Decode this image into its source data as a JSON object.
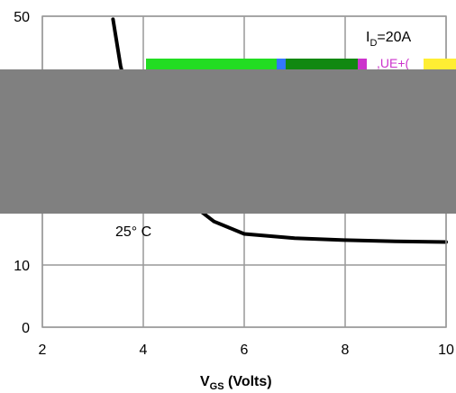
{
  "chart_data": {
    "type": "line",
    "xlabel_main": "V",
    "xlabel_sub": "GS",
    "xlabel_rest": " (Volts)",
    "ylabel": "",
    "xlim": [
      2,
      10
    ],
    "ylim": [
      0,
      50
    ],
    "x_ticks": [
      2,
      4,
      6,
      8,
      10
    ],
    "x_tick_labels": [
      "2",
      "4",
      "6",
      "8",
      "10"
    ],
    "y_ticks": [
      0,
      10,
      20,
      30,
      40,
      50
    ],
    "y_tick_labels": [
      "0",
      "10",
      "",
      "",
      "",
      "50"
    ],
    "grid": true,
    "series": [
      {
        "x": [
          3.4,
          3.55,
          3.7,
          3.85,
          4.0,
          4.3,
          4.6,
          5.0,
          5.4,
          6.0,
          7.0,
          8.0,
          9.0,
          10.0
        ],
        "y": [
          49.5,
          42,
          37,
          33,
          30,
          27,
          23,
          19.5,
          17,
          15,
          14.3,
          14,
          13.8,
          13.7
        ],
        "color": "#000000"
      }
    ],
    "annotations": {
      "id_main": "I",
      "id_sub": "D",
      "id_rest": "=20A",
      "temp": "25° C"
    }
  },
  "colors": {
    "redaction": "#808080",
    "strip_green": "#22dd22",
    "strip_dark_green": "#118811",
    "strip_magenta": "#cc33cc",
    "strip_yellow": "#ffee33",
    "strip_blue": "#3377ff"
  },
  "overlay_text": ",UE+("
}
